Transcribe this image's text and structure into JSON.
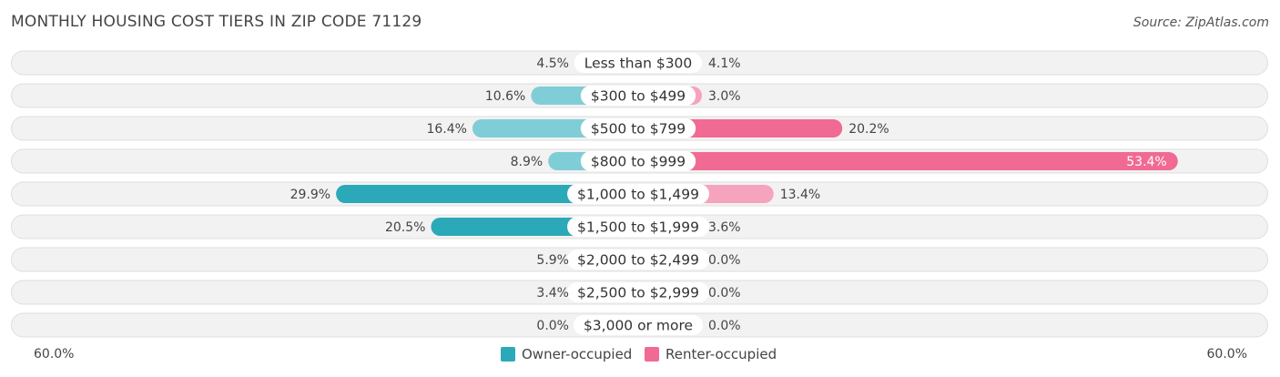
{
  "title": "MONTHLY HOUSING COST TIERS IN ZIP CODE 71129",
  "source": "Source: ZipAtlas.com",
  "colors": {
    "owner": "#2ba9b8",
    "owner_light": "#7fcdd6",
    "renter": "#f06a94",
    "renter_light": "#f6a3bd",
    "row_bg": "#f2f2f2",
    "row_border": "#dedede"
  },
  "legend": {
    "owner_label": "Owner-occupied",
    "renter_label": "Renter-occupied"
  },
  "axis": {
    "left_label": "60.0%",
    "right_label": "60.0%"
  },
  "chart_data": {
    "type": "bar",
    "title": "MONTHLY HOUSING COST TIERS IN ZIP CODE 71129",
    "orientation": "horizontal-diverging",
    "xlim": [
      -60,
      60
    ],
    "categories": [
      "Less than $300",
      "$300 to $499",
      "$500 to $799",
      "$800 to $999",
      "$1,000 to $1,499",
      "$1,500 to $1,999",
      "$2,000 to $2,499",
      "$2,500 to $2,999",
      "$3,000 or more"
    ],
    "series": [
      {
        "name": "Owner-occupied",
        "values": [
          4.5,
          10.6,
          16.4,
          8.9,
          29.9,
          20.5,
          5.9,
          3.4,
          0.0
        ],
        "labels": [
          "4.5%",
          "10.6%",
          "16.4%",
          "8.9%",
          "29.9%",
          "20.5%",
          "5.9%",
          "3.4%",
          "0.0%"
        ]
      },
      {
        "name": "Renter-occupied",
        "values": [
          4.1,
          3.0,
          20.2,
          53.4,
          13.4,
          3.6,
          0.0,
          0.0,
          0.0
        ],
        "labels": [
          "4.1%",
          "3.0%",
          "20.2%",
          "53.4%",
          "13.4%",
          "3.6%",
          "0.0%",
          "0.0%",
          "0.0%"
        ]
      }
    ]
  }
}
